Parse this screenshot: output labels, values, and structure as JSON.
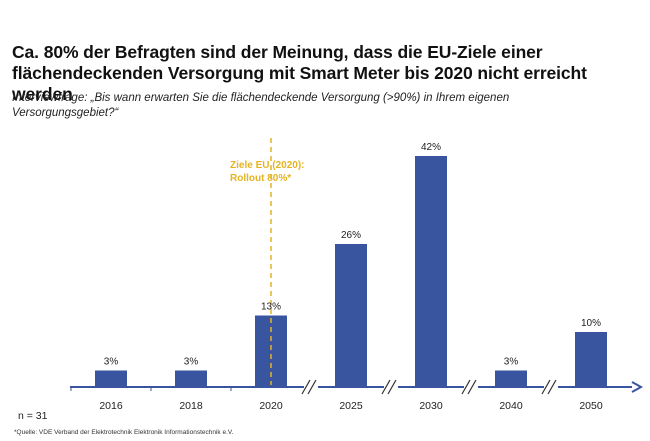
{
  "header": {
    "title_line1": "Ca. 80% der Befragten sind der Meinung, dass die EU-Ziele einer",
    "title_line2": "flächendeckenden Versorgung mit Smart Meter bis 2020 nicht erreicht werden",
    "subtitle_line1": "Interviewfrage: „Bis wann erwarten Sie die flächendeckende Versorgung (>90%) in Ihrem eigenen",
    "subtitle_line2": "Versorgungsgebiet?“"
  },
  "footer": {
    "n": "n = 31",
    "source": "*Quelle: VDE Verband der Elektrotechnik Elektronik Informationstechnik e.V."
  },
  "colors": {
    "bar": "#3a55a0",
    "axis": "#3a55a0",
    "annotation": "#e6b422"
  },
  "chart_data": {
    "type": "bar",
    "title": "Ca. 80% der Befragten sind der Meinung, dass die EU-Ziele einer flächendeckenden Versorgung mit Smart Meter bis 2020 nicht erreicht werden",
    "xlabel": "",
    "ylabel": "",
    "categories": [
      "2016",
      "2018",
      "2020",
      "2025",
      "2030",
      "2040",
      "2050"
    ],
    "values": [
      3,
      3,
      13,
      26,
      42,
      3,
      10
    ],
    "value_labels": [
      "3%",
      "3%",
      "13%",
      "26%",
      "42%",
      "3%",
      "10%"
    ],
    "unit": "%",
    "ylim": [
      0,
      42
    ],
    "grid": false,
    "axis_breaks_after": [
      "2020",
      "2025",
      "2030",
      "2040"
    ],
    "annotation": {
      "category": "2020",
      "line1": "Ziele EU (2020):",
      "line2": "Rollout 80%*",
      "style": "dashed vertical line"
    }
  }
}
